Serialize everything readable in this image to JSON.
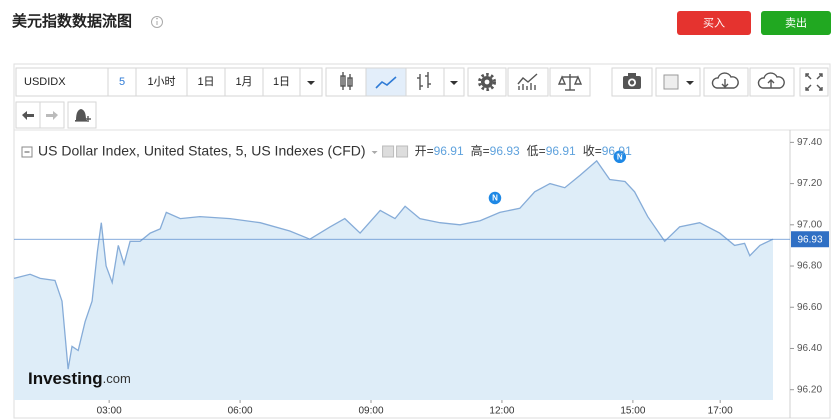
{
  "header": {
    "title": "美元指数数据流图",
    "buy": "买入",
    "sell": "卖出"
  },
  "toolbar": {
    "symbol": "USDIDX",
    "interval": "5",
    "buttons": [
      "1小时",
      "1日",
      "1月",
      "1日"
    ]
  },
  "chart_data": {
    "type": "area",
    "title": "US Dollar Index, United States, 5, US Indexes (CFD)",
    "ohlc": [
      {
        "label": "开=",
        "value": 96.91
      },
      {
        "label": "高=",
        "value": 96.93
      },
      {
        "label": "低=",
        "value": 96.91
      },
      {
        "label": "收=",
        "value": 96.91
      }
    ],
    "x": [
      0.82,
      1.19,
      1.42,
      1.76,
      1.92,
      2.06,
      2.15,
      2.29,
      2.45,
      2.61,
      2.73,
      2.82,
      2.93,
      3.07,
      3.21,
      3.34,
      3.48,
      3.71,
      3.94,
      4.17,
      4.31,
      4.63,
      5.08,
      5.77,
      6.46,
      7.14,
      7.6,
      8.06,
      8.4,
      8.75,
      9.21,
      9.55,
      9.78,
      10.12,
      10.58,
      11.04,
      11.5,
      11.95,
      12.41,
      12.75,
      13.1,
      13.44,
      13.79,
      14.17,
      14.47,
      14.82,
      15.04,
      15.34,
      15.73,
      16.07,
      16.53,
      16.99,
      17.33,
      17.56,
      17.68,
      17.91,
      18.21
    ],
    "values": [
      96.74,
      96.76,
      96.74,
      96.73,
      96.63,
      96.3,
      96.41,
      96.39,
      96.53,
      96.63,
      96.87,
      97.01,
      96.8,
      96.72,
      96.9,
      96.81,
      96.92,
      96.92,
      96.96,
      96.98,
      97.06,
      97.03,
      97.04,
      97.03,
      97.01,
      96.97,
      96.93,
      96.99,
      97.03,
      96.96,
      97.07,
      97.03,
      97.09,
      97.03,
      97.01,
      97.0,
      97.02,
      97.06,
      97.08,
      97.16,
      97.2,
      97.18,
      97.24,
      97.31,
      97.22,
      97.21,
      97.16,
      97.04,
      96.92,
      96.99,
      97.01,
      96.96,
      96.9,
      96.91,
      96.85,
      96.9,
      96.93
    ],
    "color": "#86acd8",
    "fill": "#deedf8",
    "xlim": [
      0.82,
      18.6
    ],
    "ylim": [
      96.15,
      97.46
    ],
    "xticks": [
      {
        "value": 3,
        "label": "03:00"
      },
      {
        "value": 6,
        "label": "06:00"
      },
      {
        "value": 9,
        "label": "09:00"
      },
      {
        "value": 12,
        "label": "12:00"
      },
      {
        "value": 15,
        "label": "15:00"
      },
      {
        "value": 17,
        "label": "17:00"
      }
    ],
    "yticks": [
      {
        "value": 97.4,
        "label": "97.40"
      },
      {
        "value": 97.2,
        "label": "97.20"
      },
      {
        "value": 97.0,
        "label": "97.00"
      },
      {
        "value": 96.8,
        "label": "96.80"
      },
      {
        "value": 96.6,
        "label": "96.60"
      },
      {
        "value": 96.4,
        "label": "96.40"
      },
      {
        "value": 96.2,
        "label": "96.20"
      }
    ],
    "annotations": [
      {
        "text": "N",
        "x": 11.84,
        "y": 97.13
      },
      {
        "text": "N",
        "x": 14.7,
        "y": 97.33
      }
    ],
    "watermark": {
      "brand": "Investing",
      "suffix": ".com"
    }
  }
}
